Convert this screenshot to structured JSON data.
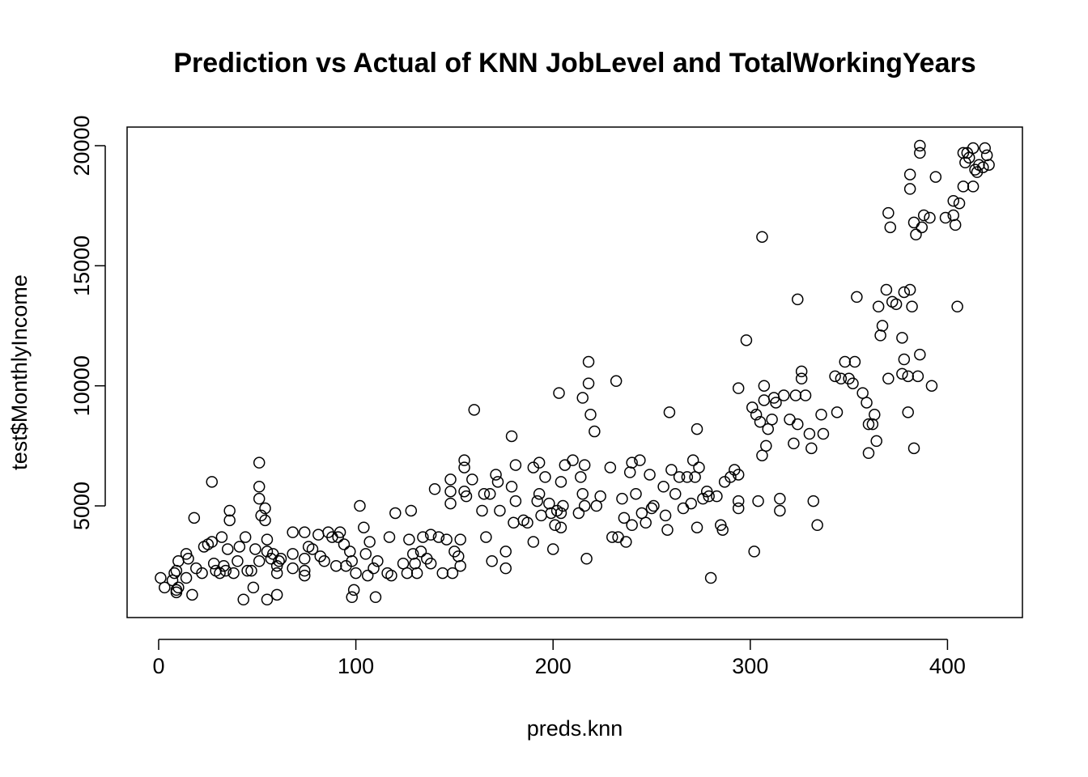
{
  "chart_data": {
    "type": "scatter",
    "title": "Prediction vs Actual of KNN JobLevel and TotalWorkingYears",
    "x_label": "preds.knn",
    "y_label": "test$MonthlyIncome",
    "color": "#000000",
    "xlim": [
      -16,
      438
    ],
    "ylim": [
      350,
      20775
    ],
    "xticks": [
      0,
      100,
      200,
      300,
      400
    ],
    "yticks": [
      5000,
      10000,
      15000,
      20000
    ],
    "x": [
      1,
      3,
      7,
      8,
      9,
      9,
      9,
      10,
      10,
      14,
      14,
      15,
      17,
      18,
      19,
      22,
      23,
      25,
      27,
      27,
      28,
      29,
      31,
      32,
      33,
      34,
      35,
      36,
      36,
      38,
      40,
      41,
      43,
      44,
      45,
      47,
      48,
      49,
      51,
      51,
      51,
      51,
      52,
      54,
      54,
      55,
      55,
      55,
      57,
      58,
      60,
      60,
      60,
      61,
      62,
      68,
      68,
      68,
      74,
      74,
      74,
      74,
      76,
      78,
      81,
      82,
      84,
      86,
      88,
      90,
      91,
      92,
      94,
      95,
      97,
      98,
      98,
      99,
      100,
      102,
      104,
      105,
      106,
      107,
      109,
      110,
      111,
      116,
      117,
      118,
      120,
      124,
      126,
      127,
      128,
      129,
      130,
      131,
      133,
      134,
      136,
      138,
      138,
      140,
      142,
      144,
      146,
      148,
      148,
      148,
      149,
      150,
      152,
      153,
      153,
      155,
      155,
      155,
      156,
      159,
      160,
      164,
      165,
      166,
      168,
      169,
      171,
      172,
      173,
      176,
      176,
      179,
      179,
      180,
      181,
      181,
      185,
      187,
      190,
      190,
      192,
      193,
      193,
      194,
      196,
      198,
      199,
      200,
      201,
      202,
      203,
      204,
      204,
      204,
      205,
      206,
      210,
      213,
      214,
      215,
      215,
      216,
      216,
      217,
      218,
      218,
      219,
      221,
      222,
      224,
      229,
      230,
      232,
      233,
      235,
      236,
      237,
      239,
      240,
      240,
      242,
      244,
      245,
      247,
      249,
      250,
      251,
      256,
      257,
      258,
      259,
      260,
      262,
      264,
      266,
      268,
      270,
      271,
      272,
      273,
      273,
      274,
      276,
      278,
      279,
      280,
      283,
      285,
      286,
      287,
      290,
      292,
      294,
      294,
      294,
      294,
      298,
      301,
      302,
      303,
      304,
      305,
      306,
      306,
      307,
      307,
      308,
      309,
      311,
      312,
      313,
      315,
      315,
      317,
      320,
      322,
      323,
      324,
      324,
      326,
      326,
      328,
      330,
      331,
      332,
      334,
      336,
      337,
      343,
      344,
      346,
      348,
      350,
      352,
      353,
      354,
      357,
      359,
      360,
      360,
      362,
      363,
      364,
      365,
      366,
      367,
      369,
      370,
      370,
      371,
      372,
      374,
      377,
      377,
      378,
      378,
      380,
      380,
      381,
      381,
      381,
      382,
      383,
      383,
      384,
      385,
      386,
      386,
      386,
      387,
      388,
      391,
      392,
      394,
      399,
      403,
      403,
      404,
      405,
      406,
      408,
      408,
      409,
      410,
      411,
      413,
      413,
      414,
      415,
      416,
      418,
      419,
      420,
      421
    ],
    "values": [
      2000,
      1600,
      1900,
      2200,
      2300,
      1500,
      1400,
      2700,
      1600,
      2000,
      3000,
      2800,
      1300,
      4500,
      2400,
      2200,
      3300,
      3400,
      3500,
      6000,
      2600,
      2300,
      2200,
      3700,
      2500,
      2300,
      3200,
      4400,
      4800,
      2200,
      2700,
      3300,
      1100,
      3700,
      2300,
      2300,
      1600,
      3200,
      2700,
      6800,
      5800,
      5300,
      4600,
      4900,
      4400,
      3600,
      3100,
      1100,
      2800,
      3000,
      1300,
      2200,
      2500,
      2700,
      2800,
      3900,
      3000,
      2400,
      3900,
      2800,
      2100,
      2300,
      3300,
      3200,
      3800,
      2900,
      2700,
      3900,
      3700,
      2500,
      3700,
      3900,
      3400,
      2500,
      3100,
      2700,
      1200,
      1500,
      2200,
      5000,
      4100,
      3000,
      2100,
      3500,
      2400,
      1200,
      2700,
      2200,
      3700,
      2100,
      4700,
      2600,
      2200,
      3600,
      4800,
      3000,
      2600,
      2200,
      3100,
      3700,
      2800,
      2600,
      3800,
      5700,
      3700,
      2200,
      3600,
      5600,
      6100,
      5100,
      2200,
      3100,
      2900,
      3600,
      2500,
      6900,
      6600,
      5600,
      5400,
      6100,
      9000,
      4800,
      5500,
      3700,
      5500,
      2700,
      6300,
      6000,
      4800,
      3100,
      2400,
      5800,
      7900,
      4300,
      6700,
      5200,
      4400,
      4300,
      6600,
      3500,
      5200,
      6800,
      5500,
      4600,
      6200,
      5100,
      4700,
      3200,
      4200,
      4800,
      9700,
      6000,
      4700,
      4100,
      5000,
      6700,
      6900,
      4700,
      6200,
      5500,
      9500,
      5000,
      6700,
      2800,
      11000,
      10100,
      8800,
      8100,
      5000,
      5400,
      6600,
      3700,
      10200,
      3700,
      5300,
      4500,
      3500,
      6400,
      4200,
      6800,
      5500,
      6900,
      4700,
      4300,
      6300,
      4900,
      5000,
      5800,
      4600,
      4000,
      8900,
      6500,
      5500,
      6200,
      4900,
      6200,
      5100,
      6900,
      6200,
      4100,
      8200,
      6600,
      5300,
      5600,
      5400,
      2000,
      5400,
      4200,
      4000,
      6000,
      6200,
      6500,
      9900,
      6300,
      4900,
      5200,
      11900,
      9100,
      3100,
      8800,
      5200,
      8500,
      16200,
      7100,
      10000,
      9400,
      7500,
      8200,
      8600,
      9500,
      9300,
      5300,
      4800,
      9600,
      8600,
      7600,
      9600,
      8400,
      13600,
      10600,
      10300,
      9600,
      8000,
      7400,
      5200,
      4200,
      8800,
      8000,
      10400,
      8900,
      10300,
      11000,
      10300,
      10100,
      11000,
      13700,
      9700,
      9300,
      8400,
      7200,
      8400,
      8800,
      7700,
      13300,
      12100,
      12500,
      14000,
      10300,
      17200,
      16600,
      13500,
      13400,
      10500,
      12000,
      11100,
      13900,
      8900,
      10400,
      14000,
      18800,
      18200,
      13300,
      7400,
      16800,
      16300,
      10400,
      11300,
      20000,
      19700,
      16600,
      17100,
      17000,
      10000,
      18700,
      17000,
      17700,
      17100,
      16700,
      13300,
      17600,
      18300,
      19700,
      19300,
      19700,
      19500,
      18300,
      19900,
      19000,
      18900,
      19200,
      19100,
      19900,
      19600,
      19200
    ]
  }
}
